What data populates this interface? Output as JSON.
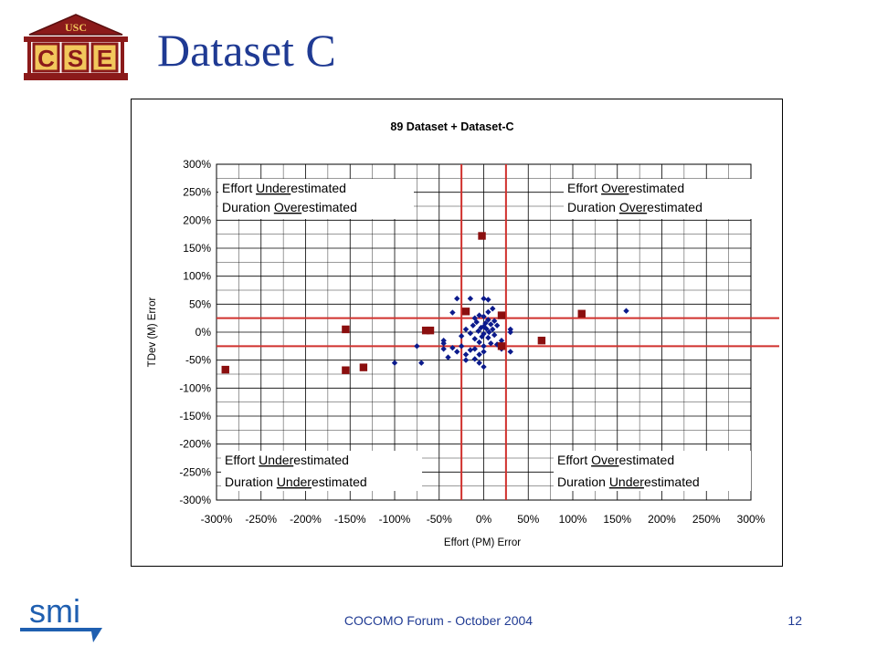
{
  "slide": {
    "title": "Dataset C",
    "footer": "COCOMO Forum - October 2004",
    "page_number": "12"
  },
  "logo": {
    "top_text": "USC",
    "main_text": "CSE"
  },
  "footer_logo": {
    "text": "smi"
  },
  "colors": {
    "title": "#1f3a93",
    "dataset_89": "#0b1a8c",
    "dataset_c": "#8b0f0f",
    "threshold_lines": "#d0312d",
    "grid": "#000000"
  },
  "chart_data": {
    "type": "scatter",
    "title": "89 Dataset + Dataset-C",
    "xlabel": "Effort (PM) Error",
    "ylabel": "TDev (M) Error",
    "xlim": [
      -300,
      300
    ],
    "ylim": [
      -300,
      300
    ],
    "x_ticks": [
      "-300%",
      "-250%",
      "-200%",
      "-150%",
      "-100%",
      "-50%",
      "0%",
      "50%",
      "100%",
      "150%",
      "200%",
      "250%",
      "300%"
    ],
    "y_ticks": [
      "300%",
      "250%",
      "200%",
      "150%",
      "100%",
      "50%",
      "0%",
      "-50%",
      "-100%",
      "-150%",
      "-200%",
      "-250%",
      "-300%"
    ],
    "grid": true,
    "reference_lines": {
      "vertical": [
        -25,
        25
      ],
      "horizontal": [
        25,
        -25
      ]
    },
    "quadrant_labels": [
      {
        "line1_pre": "Effort ",
        "line1_u": "Under",
        "line1_post": "estimated",
        "line2_pre": "Duration ",
        "line2_u": "Over",
        "line2_post": "estimated",
        "corner": "top-left"
      },
      {
        "line1_pre": "Effort ",
        "line1_u": "Over",
        "line1_post": "estimated",
        "line2_pre": "Duration ",
        "line2_u": "Over",
        "line2_post": "estimated",
        "corner": "top-right"
      },
      {
        "line1_pre": "Effort ",
        "line1_u": "Under",
        "line1_post": "estimated",
        "line2_pre": "Duration ",
        "line2_u": "Under",
        "line2_post": "estimated",
        "corner": "bottom-left"
      },
      {
        "line1_pre": "Effort ",
        "line1_u": "Over",
        "line1_post": "estimated",
        "line2_pre": "Duration ",
        "line2_u": "Under",
        "line2_post": "estimated",
        "corner": "bottom-right"
      }
    ],
    "series": [
      {
        "marker": "diamond",
        "color": "#0b1a8c",
        "points": [
          [
            -30,
            60
          ],
          [
            -15,
            60
          ],
          [
            0,
            60
          ],
          [
            5,
            58
          ],
          [
            -35,
            35
          ],
          [
            10,
            42
          ],
          [
            5,
            36
          ],
          [
            -5,
            30
          ],
          [
            0,
            28
          ],
          [
            -10,
            25
          ],
          [
            5,
            22
          ],
          [
            12,
            20
          ],
          [
            -8,
            18
          ],
          [
            2,
            16
          ],
          [
            8,
            14
          ],
          [
            -12,
            12
          ],
          [
            0,
            10
          ],
          [
            15,
            12
          ],
          [
            -3,
            8
          ],
          [
            3,
            6
          ],
          [
            10,
            5
          ],
          [
            -20,
            5
          ],
          [
            30,
            5
          ],
          [
            -6,
            2
          ],
          [
            6,
            0
          ],
          [
            -15,
            -2
          ],
          [
            0,
            -3
          ],
          [
            12,
            -5
          ],
          [
            -25,
            -7
          ],
          [
            -2,
            -8
          ],
          [
            5,
            -10
          ],
          [
            -10,
            -12
          ],
          [
            20,
            -15
          ],
          [
            -45,
            -15
          ],
          [
            -5,
            -18
          ],
          [
            8,
            -20
          ],
          [
            15,
            -22
          ],
          [
            0,
            -25
          ],
          [
            -25,
            -25
          ],
          [
            -35,
            -28
          ],
          [
            -10,
            -30
          ],
          [
            20,
            -30
          ],
          [
            -45,
            -30
          ],
          [
            -15,
            -32
          ],
          [
            -30,
            -35
          ],
          [
            0,
            -35
          ],
          [
            30,
            -35
          ],
          [
            -20,
            -40
          ],
          [
            -5,
            -40
          ],
          [
            -40,
            -45
          ],
          [
            -10,
            -48
          ],
          [
            -20,
            -50
          ],
          [
            -70,
            -55
          ],
          [
            -5,
            -55
          ],
          [
            -100,
            -55
          ],
          [
            0,
            -62
          ],
          [
            -75,
            -25
          ],
          [
            30,
            0
          ],
          [
            -45,
            -20
          ],
          [
            160,
            38
          ]
        ]
      },
      {
        "marker": "square",
        "color": "#8b0f0f",
        "points": [
          [
            -2,
            172
          ],
          [
            -20,
            37
          ],
          [
            20,
            30
          ],
          [
            110,
            33
          ],
          [
            -155,
            5
          ],
          [
            -65,
            3
          ],
          [
            -60,
            3
          ],
          [
            65,
            -15
          ],
          [
            20,
            -25
          ],
          [
            -290,
            -67
          ],
          [
            -155,
            -68
          ],
          [
            -135,
            -63
          ]
        ]
      }
    ]
  }
}
